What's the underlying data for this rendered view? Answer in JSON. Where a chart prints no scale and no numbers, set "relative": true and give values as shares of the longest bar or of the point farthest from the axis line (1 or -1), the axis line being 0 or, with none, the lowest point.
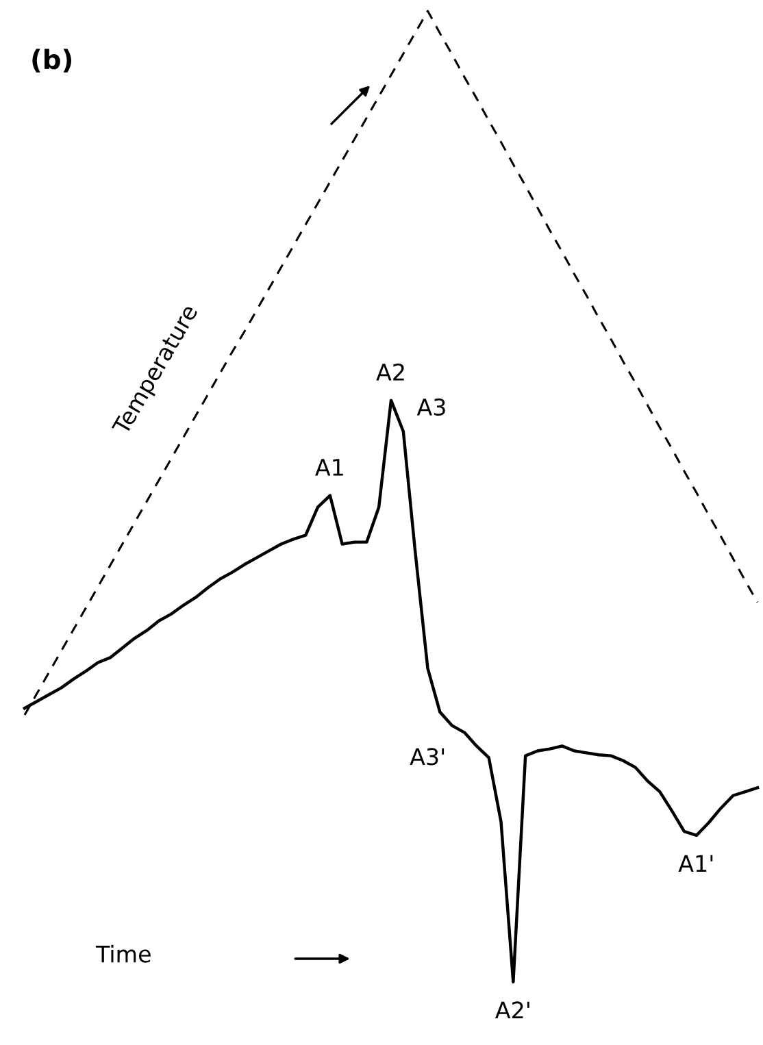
{
  "chart_data": {
    "type": "line",
    "title": "(b)",
    "xlabel": "Time",
    "relative": true,
    "legend": false,
    "marker": "none",
    "categories": [
      null,
      null,
      null,
      null,
      null,
      null,
      null,
      null,
      null,
      null,
      null,
      null,
      null,
      null,
      null,
      null,
      null,
      null,
      null,
      null,
      null,
      null,
      null,
      null,
      null,
      null,
      null,
      null,
      null,
      null,
      null,
      null,
      null,
      null,
      null,
      null,
      null,
      null,
      null,
      null,
      null,
      null,
      null,
      null,
      null,
      null,
      null,
      null,
      null,
      null,
      null,
      null,
      null,
      null,
      null,
      null,
      null,
      null,
      null,
      null,
      null
    ],
    "series": [
      {
        "name": "Temperature",
        "color": "#000000",
        "line_style": "dashed",
        "values": [
          0.275,
          0.297,
          0.319,
          0.341,
          0.363,
          0.385,
          0.407,
          0.429,
          0.451,
          0.473,
          0.495,
          0.517,
          0.539,
          0.561,
          0.583,
          0.605,
          0.627,
          0.649,
          0.67,
          0.692,
          0.714,
          0.736,
          0.758,
          0.78,
          0.802,
          0.824,
          0.846,
          0.868,
          0.89,
          0.912,
          0.934,
          0.956,
          0.978,
          1.0,
          0.977,
          0.955,
          0.932,
          0.91,
          0.887,
          0.865,
          0.842,
          0.82,
          0.797,
          0.774,
          0.752,
          0.729,
          0.707,
          0.684,
          0.662,
          0.639,
          0.617,
          0.594,
          0.571,
          0.549,
          0.526,
          0.504,
          0.481,
          0.459,
          0.436,
          0.413,
          0.391
        ]
      },
      {
        "color": "#000000",
        "line_style": "solid",
        "values": [
          0.282,
          0.289,
          0.296,
          0.303,
          0.312,
          0.32,
          0.329,
          0.334,
          0.344,
          0.354,
          0.362,
          0.372,
          0.379,
          0.388,
          0.396,
          0.406,
          0.415,
          0.422,
          0.43,
          0.437,
          0.444,
          0.451,
          0.456,
          0.46,
          0.489,
          0.501,
          0.451,
          0.453,
          0.453,
          0.489,
          0.599,
          0.567,
          0.44,
          0.323,
          0.278,
          0.264,
          0.257,
          0.243,
          0.231,
          0.165,
          0,
          0.233,
          0.238,
          0.24,
          0.243,
          0.238,
          0.236,
          0.234,
          0.233,
          0.228,
          0.221,
          0.207,
          0.196,
          0.176,
          0.155,
          0.151,
          0.164,
          0.179,
          0.192,
          0.196,
          0.2
        ]
      }
    ],
    "annotations": [
      {
        "text": "A1",
        "y": 0.501
      },
      {
        "text": "A2",
        "y": 0.599
      },
      "A3",
      "A3'",
      {
        "text": "A2'",
        "y": 0
      },
      {
        "text": "A1'",
        "y": 0.151
      }
    ]
  }
}
